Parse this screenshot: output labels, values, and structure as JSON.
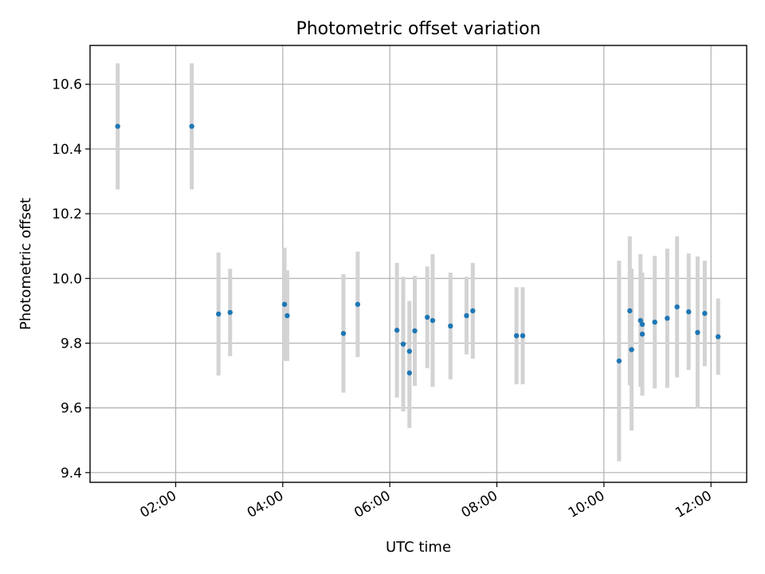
{
  "chart_data": {
    "type": "scatter",
    "title": "Photometric offset variation",
    "xlabel": "UTC time",
    "ylabel": "Photometric offset",
    "xlim": [
      "00:24",
      "12:40"
    ],
    "ylim": [
      9.37,
      10.72
    ],
    "x_ticks": [
      "02:00",
      "04:00",
      "06:00",
      "08:00",
      "10:00",
      "12:00"
    ],
    "y_ticks": [
      9.4,
      9.6,
      9.8,
      10.0,
      10.2,
      10.4,
      10.6
    ],
    "grid": true,
    "marker_color": "#1f77b4",
    "errorbar_color": "#d3d3d3",
    "points": [
      {
        "t": "00:55",
        "y": 10.47,
        "err": 0.195
      },
      {
        "t": "02:18",
        "y": 10.47,
        "err": 0.195
      },
      {
        "t": "02:48",
        "y": 9.89,
        "err": 0.19
      },
      {
        "t": "03:01",
        "y": 9.895,
        "err": 0.135
      },
      {
        "t": "04:02",
        "y": 9.92,
        "err": 0.175
      },
      {
        "t": "04:05",
        "y": 9.885,
        "err": 0.14
      },
      {
        "t": "05:08",
        "y": 9.83,
        "err": 0.183
      },
      {
        "t": "05:24",
        "y": 9.92,
        "err": 0.163
      },
      {
        "t": "06:08",
        "y": 9.84,
        "err": 0.208
      },
      {
        "t": "06:15",
        "y": 9.797,
        "err": 0.208
      },
      {
        "t": "06:22",
        "y": 9.775,
        "err": 0.155
      },
      {
        "t": "06:22",
        "y": 9.708,
        "err": 0.17
      },
      {
        "t": "06:28",
        "y": 9.838,
        "err": 0.17
      },
      {
        "t": "06:42",
        "y": 9.88,
        "err": 0.157
      },
      {
        "t": "06:48",
        "y": 9.87,
        "err": 0.205
      },
      {
        "t": "07:08",
        "y": 9.853,
        "err": 0.165
      },
      {
        "t": "07:26",
        "y": 9.885,
        "err": 0.12
      },
      {
        "t": "07:33",
        "y": 9.9,
        "err": 0.148
      },
      {
        "t": "08:22",
        "y": 9.823,
        "err": 0.15
      },
      {
        "t": "08:29",
        "y": 9.823,
        "err": 0.15
      },
      {
        "t": "10:17",
        "y": 9.745,
        "err": 0.31
      },
      {
        "t": "10:29",
        "y": 9.9,
        "err": 0.23
      },
      {
        "t": "10:31",
        "y": 9.78,
        "err": 0.25
      },
      {
        "t": "10:41",
        "y": 9.87,
        "err": 0.205
      },
      {
        "t": "10:43",
        "y": 9.858,
        "err": 0.16
      },
      {
        "t": "10:43",
        "y": 9.828,
        "err": 0.19
      },
      {
        "t": "10:57",
        "y": 9.865,
        "err": 0.205
      },
      {
        "t": "11:11",
        "y": 9.877,
        "err": 0.215
      },
      {
        "t": "11:22",
        "y": 9.912,
        "err": 0.218
      },
      {
        "t": "11:35",
        "y": 9.897,
        "err": 0.18
      },
      {
        "t": "11:45",
        "y": 9.833,
        "err": 0.235
      },
      {
        "t": "11:53",
        "y": 9.892,
        "err": 0.163
      },
      {
        "t": "12:08",
        "y": 9.82,
        "err": 0.118
      }
    ]
  }
}
